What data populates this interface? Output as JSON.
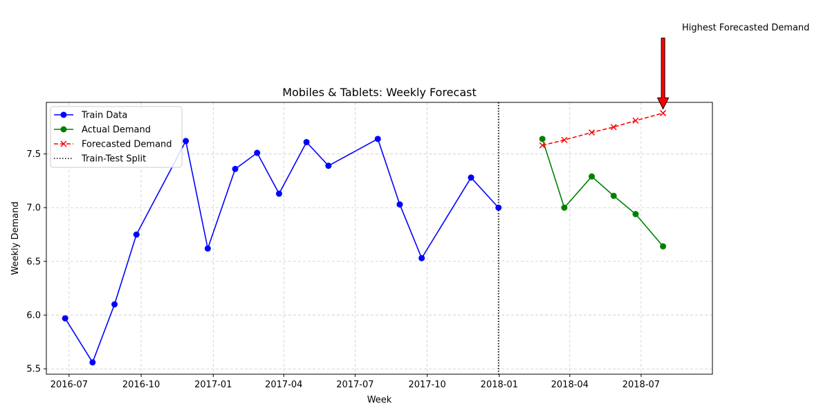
{
  "chart_data": {
    "type": "line",
    "title": "Mobiles & Tablets: Weekly Forecast",
    "xlabel": "Week",
    "ylabel": "Weekly Demand",
    "x_ticks": [
      "2016-07",
      "2016-10",
      "2017-01",
      "2017-04",
      "2017-07",
      "2017-10",
      "2018-01",
      "2018-04",
      "2018-07"
    ],
    "y_ticks": [
      "5.5",
      "6.0",
      "6.5",
      "7.0",
      "7.5"
    ],
    "y_tick_values": [
      5.5,
      6.0,
      6.5,
      7.0,
      7.5
    ],
    "xlim": [
      "2016-06-02",
      "2018-09-30"
    ],
    "ylim": [
      5.45,
      7.98
    ],
    "grid": true,
    "legend_position": "upper-left",
    "series": [
      {
        "name": "Train Data",
        "color": "#0000ff",
        "line_style": "solid",
        "marker": "circle",
        "points": [
          {
            "x": "2016-06-26",
            "y": 5.97
          },
          {
            "x": "2016-07-31",
            "y": 5.56
          },
          {
            "x": "2016-08-28",
            "y": 6.1
          },
          {
            "x": "2016-09-25",
            "y": 6.75
          },
          {
            "x": "2016-11-27",
            "y": 7.62
          },
          {
            "x": "2016-12-25",
            "y": 6.62
          },
          {
            "x": "2017-01-29",
            "y": 7.36
          },
          {
            "x": "2017-02-26",
            "y": 7.51
          },
          {
            "x": "2017-03-26",
            "y": 7.13
          },
          {
            "x": "2017-04-30",
            "y": 7.61
          },
          {
            "x": "2017-05-28",
            "y": 7.39
          },
          {
            "x": "2017-07-30",
            "y": 7.64
          },
          {
            "x": "2017-08-27",
            "y": 7.03
          },
          {
            "x": "2017-09-24",
            "y": 6.53
          },
          {
            "x": "2017-11-26",
            "y": 7.28
          },
          {
            "x": "2017-12-31",
            "y": 7.0
          }
        ]
      },
      {
        "name": "Actual Demand",
        "color": "#008000",
        "line_style": "solid",
        "marker": "circle",
        "points": [
          {
            "x": "2018-02-25",
            "y": 7.64
          },
          {
            "x": "2018-03-25",
            "y": 7.0
          },
          {
            "x": "2018-04-29",
            "y": 7.29
          },
          {
            "x": "2018-05-27",
            "y": 7.11
          },
          {
            "x": "2018-06-24",
            "y": 6.94
          },
          {
            "x": "2018-07-29",
            "y": 6.64
          }
        ]
      },
      {
        "name": "Forecasted Demand",
        "color": "#ff0000",
        "line_style": "dashed",
        "marker": "x",
        "points": [
          {
            "x": "2018-02-25",
            "y": 7.58
          },
          {
            "x": "2018-03-25",
            "y": 7.63
          },
          {
            "x": "2018-04-29",
            "y": 7.7
          },
          {
            "x": "2018-05-27",
            "y": 7.75
          },
          {
            "x": "2018-06-24",
            "y": 7.81
          },
          {
            "x": "2018-07-29",
            "y": 7.88
          }
        ]
      }
    ],
    "split": {
      "name": "Train-Test Split",
      "x": "2017-12-31",
      "color": "#000000",
      "line_style": "dotted"
    },
    "annotation": {
      "text": "Highest Forecasted Demand",
      "x": "2018-07-29",
      "y": 7.88,
      "arrow_color": "#ff0000"
    }
  }
}
